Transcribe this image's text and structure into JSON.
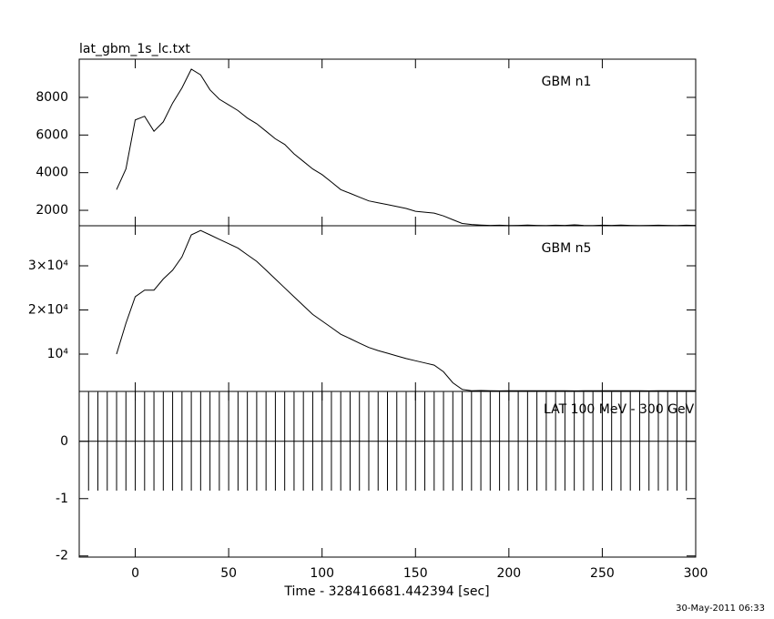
{
  "chart_data": [
    {
      "type": "line",
      "title": "lat_gbm_1s_lc.txt",
      "annotation": "GBM n1",
      "x": [
        -10,
        -5,
        0,
        5,
        10,
        15,
        20,
        25,
        30,
        35,
        40,
        45,
        50,
        55,
        60,
        65,
        70,
        75,
        80,
        85,
        90,
        95,
        100,
        105,
        110,
        115,
        120,
        125,
        130,
        135,
        140,
        145,
        150,
        155,
        160,
        165,
        170,
        175,
        180,
        185,
        190,
        195,
        200,
        205,
        210,
        215,
        220,
        225,
        230,
        235,
        240,
        245,
        250,
        255,
        260,
        265,
        270,
        275,
        280,
        285,
        290,
        295,
        300
      ],
      "values": [
        3100,
        4200,
        6800,
        7000,
        6200,
        6700,
        7700,
        8500,
        9500,
        9200,
        8400,
        7900,
        7600,
        7300,
        6900,
        6600,
        6200,
        5800,
        5500,
        5000,
        4600,
        4200,
        3900,
        3500,
        3100,
        2900,
        2700,
        2500,
        2400,
        2300,
        2200,
        2100,
        1950,
        1900,
        1850,
        1700,
        1500,
        1300,
        1250,
        1220,
        1200,
        1210,
        1190,
        1200,
        1220,
        1200,
        1190,
        1210,
        1200,
        1230,
        1200,
        1190,
        1210,
        1200,
        1220,
        1200,
        1190,
        1200,
        1210,
        1200,
        1190,
        1210,
        1200
      ],
      "xlim": [
        -30,
        300
      ],
      "xticks": [
        0,
        50,
        100,
        150,
        200,
        250,
        300
      ],
      "ylim": [
        1180,
        10030
      ],
      "yticks": [
        2000,
        4000,
        6000,
        8000
      ]
    },
    {
      "type": "line",
      "annotation": "GBM n5",
      "x": [
        -10,
        -5,
        0,
        5,
        10,
        15,
        20,
        25,
        30,
        35,
        40,
        45,
        50,
        55,
        60,
        65,
        70,
        75,
        80,
        85,
        90,
        95,
        100,
        105,
        110,
        115,
        120,
        125,
        130,
        135,
        140,
        145,
        150,
        155,
        160,
        165,
        170,
        175,
        180,
        185,
        190,
        195,
        200,
        205,
        210,
        215,
        220,
        225,
        230,
        235,
        240,
        245,
        250,
        255,
        260,
        265,
        270,
        275,
        280,
        285,
        290,
        295,
        300
      ],
      "values": [
        10000,
        17000,
        23000,
        24500,
        24500,
        27000,
        29000,
        32000,
        37000,
        38000,
        37000,
        36000,
        35000,
        34000,
        32500,
        31000,
        29000,
        27000,
        25000,
        23000,
        21000,
        19000,
        17500,
        16000,
        14500,
        13500,
        12500,
        11500,
        10800,
        10200,
        9600,
        9000,
        8500,
        8000,
        7500,
        6000,
        3500,
        2000,
        1700,
        1750,
        1700,
        1680,
        1720,
        1700,
        1690,
        1710,
        1700,
        1720,
        1700,
        1680,
        1700,
        1710,
        1700,
        1690,
        1720,
        1700,
        1700,
        1680,
        1710,
        1700,
        1690,
        1700,
        1700
      ],
      "xlim": [
        -30,
        300
      ],
      "xticks": [
        0,
        50,
        100,
        150,
        200,
        250,
        300
      ],
      "ylim": [
        1550,
        39070
      ],
      "yticks": [
        {
          "value": 10000,
          "label": "10⁴"
        },
        {
          "value": 20000,
          "label": "2×10⁴"
        },
        {
          "value": 30000,
          "label": "3×10⁴"
        }
      ]
    },
    {
      "type": "errorbar",
      "annotation": "LAT 100 MeV - 300 GeV",
      "xlabel": "Time - 328416681.442394 [sec]",
      "x": [
        -30,
        -25,
        -20,
        -15,
        -10,
        -5,
        0,
        5,
        10,
        15,
        20,
        25,
        30,
        35,
        40,
        45,
        50,
        55,
        60,
        65,
        70,
        75,
        80,
        85,
        90,
        95,
        100,
        105,
        110,
        115,
        120,
        125,
        130,
        135,
        140,
        145,
        150,
        155,
        160,
        165,
        170,
        175,
        180,
        185,
        190,
        195,
        200,
        205,
        210,
        215,
        220,
        225,
        230,
        235,
        240,
        245,
        250,
        255,
        260,
        265,
        270,
        275,
        280,
        285,
        290,
        295,
        300
      ],
      "values": [
        0,
        0,
        0,
        0,
        0,
        0,
        0,
        0,
        0,
        0,
        0,
        0,
        0,
        0,
        0,
        0,
        0,
        0,
        0,
        0,
        0,
        0,
        0,
        0,
        0,
        0,
        0,
        0,
        0,
        0,
        0,
        0,
        0,
        0,
        0,
        0,
        0,
        0,
        0,
        0,
        0,
        0,
        0,
        0,
        0,
        0,
        0,
        0,
        0,
        0,
        0,
        0,
        0,
        0,
        0,
        0,
        0,
        0,
        0,
        0,
        0,
        0,
        0,
        0,
        0,
        0,
        0
      ],
      "errors": [
        0.86,
        0.86,
        0.86,
        0.86,
        0.86,
        0.86,
        0.86,
        0.86,
        0.86,
        0.86,
        0.86,
        0.86,
        0.86,
        0.86,
        0.86,
        0.86,
        0.86,
        0.86,
        0.86,
        0.86,
        0.86,
        0.86,
        0.86,
        0.86,
        0.86,
        0.86,
        0.86,
        0.86,
        0.86,
        0.86,
        0.86,
        0.86,
        0.86,
        0.86,
        0.86,
        0.86,
        0.86,
        0.86,
        0.86,
        0.86,
        0.86,
        0.86,
        0.86,
        0.86,
        0.86,
        0.86,
        0.86,
        0.86,
        0.86,
        0.86,
        0.86,
        0.86,
        0.86,
        0.86,
        0.86,
        0.86,
        0.86,
        0.86,
        0.86,
        0.86,
        0.86,
        0.86,
        0.86,
        0.86,
        0.86,
        0.86,
        0.86
      ],
      "xlim": [
        -30,
        300
      ],
      "xticks": [
        0,
        50,
        100,
        150,
        200,
        250,
        300
      ],
      "ylim": [
        -2.02,
        0.87
      ],
      "yticks": [
        -2,
        -1,
        0
      ]
    }
  ],
  "timestamp": "30-May-2011 06:33"
}
